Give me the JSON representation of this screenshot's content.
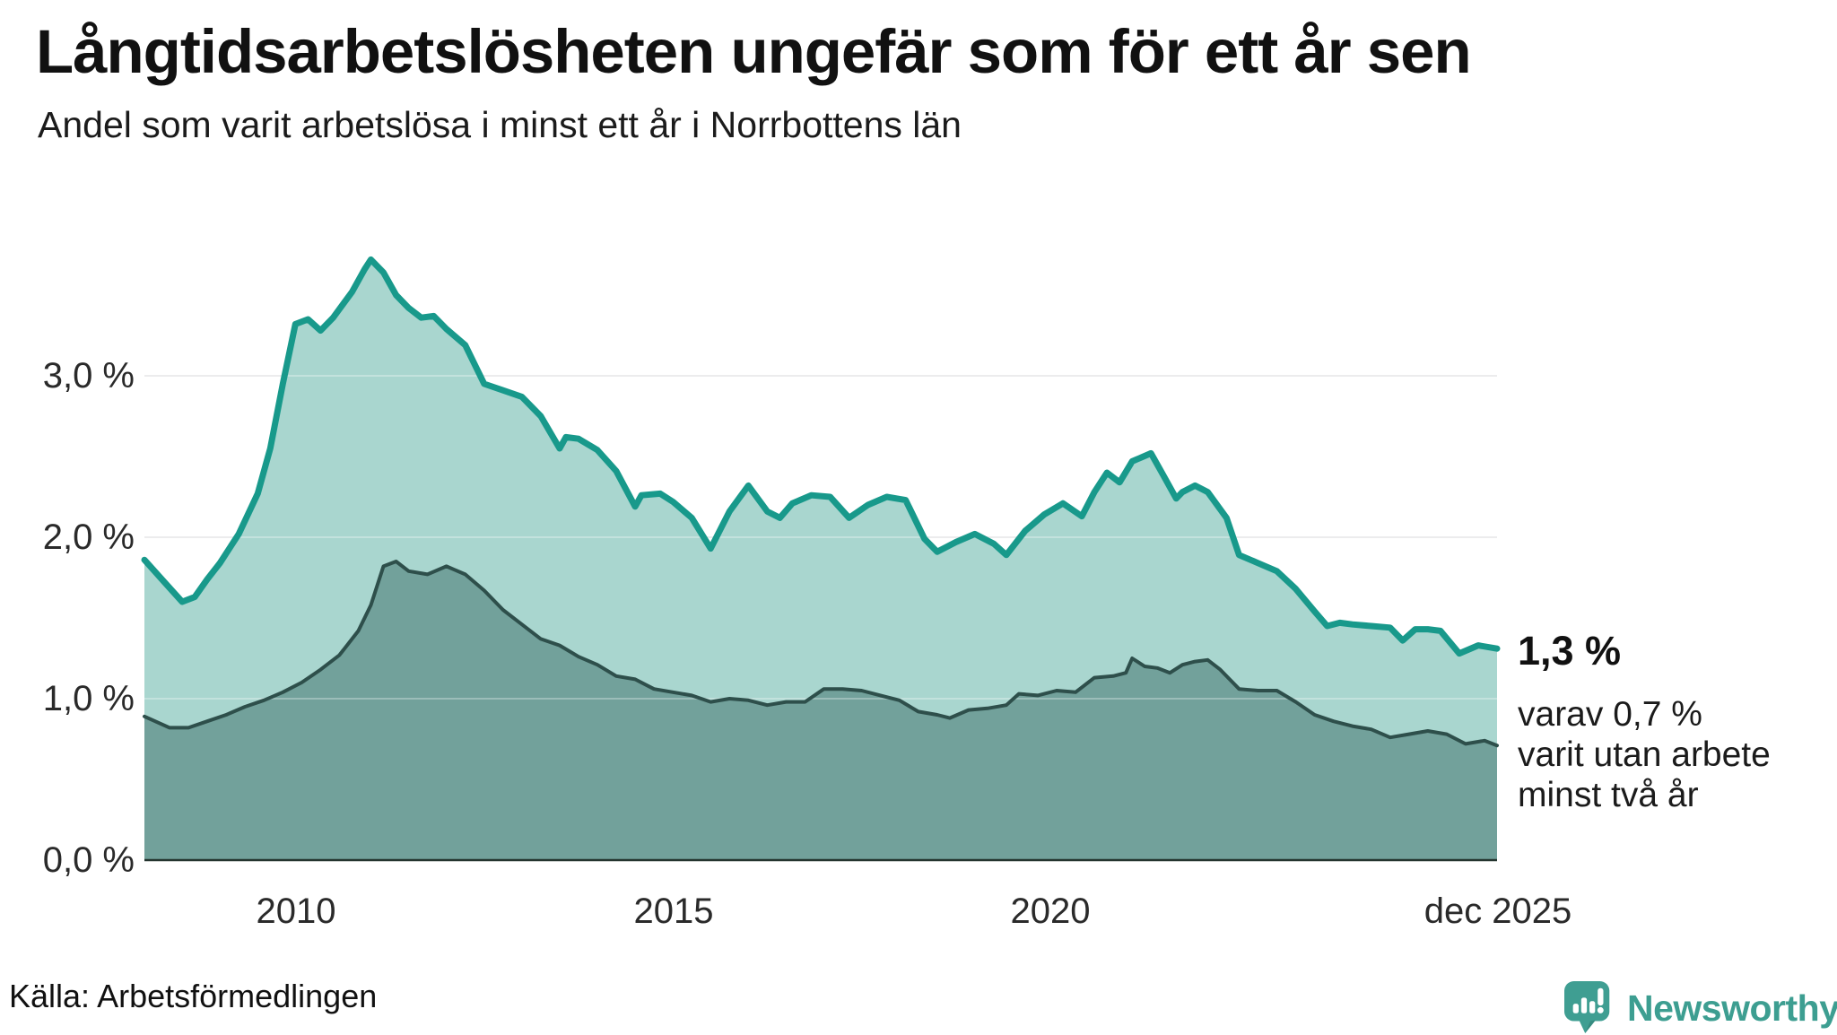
{
  "header": {
    "title": "Långtidsarbetslösheten ungefär som för ett år sen",
    "subtitle": "Andel som varit arbetslösa i minst ett år i Norrbottens län"
  },
  "chart_data": {
    "type": "area",
    "title": "Långtidsarbetslösheten ungefär som för ett år sen",
    "subtitle": "Andel som varit arbetslösa i minst ett år i Norrbottens län",
    "unit": "%",
    "x_range": [
      "2008-01",
      "2025-12"
    ],
    "ylim": [
      0,
      3.9
    ],
    "grid": true,
    "legend_position": "none",
    "y_ticks": [
      {
        "label": "3,0 %",
        "value": 3.0
      },
      {
        "label": "2,0 %",
        "value": 2.0
      },
      {
        "label": "1,0 %",
        "value": 1.0
      },
      {
        "label": "0,0 %",
        "value": 0.0
      }
    ],
    "x_ticks": [
      {
        "label": "2010",
        "date": "2010-01"
      },
      {
        "label": "2015",
        "date": "2015-01"
      },
      {
        "label": "2020",
        "date": "2020-01"
      },
      {
        "label": "dec 2025",
        "date": "2025-12"
      }
    ],
    "series": [
      {
        "name": "arbetslösa minst ett år",
        "line_color": "#18998b",
        "fill_color": "#a9d6cf",
        "line_width": 7,
        "points": [
          [
            "2008-01",
            1.86
          ],
          [
            "2008-04",
            1.73
          ],
          [
            "2008-07",
            1.6
          ],
          [
            "2008-09",
            1.63
          ],
          [
            "2008-11",
            1.74
          ],
          [
            "2009-01",
            1.84
          ],
          [
            "2009-04",
            2.02
          ],
          [
            "2009-07",
            2.27
          ],
          [
            "2009-09",
            2.55
          ],
          [
            "2009-11",
            2.95
          ],
          [
            "2010-01",
            3.32
          ],
          [
            "2010-03",
            3.35
          ],
          [
            "2010-05",
            3.28
          ],
          [
            "2010-07",
            3.36
          ],
          [
            "2010-10",
            3.52
          ],
          [
            "2010-12",
            3.66
          ],
          [
            "2011-01",
            3.72
          ],
          [
            "2011-03",
            3.64
          ],
          [
            "2011-05",
            3.5
          ],
          [
            "2011-07",
            3.42
          ],
          [
            "2011-09",
            3.36
          ],
          [
            "2011-11",
            3.37
          ],
          [
            "2012-01",
            3.29
          ],
          [
            "2012-04",
            3.19
          ],
          [
            "2012-07",
            2.95
          ],
          [
            "2012-10",
            2.91
          ],
          [
            "2013-01",
            2.87
          ],
          [
            "2013-04",
            2.75
          ],
          [
            "2013-07",
            2.55
          ],
          [
            "2013-08",
            2.62
          ],
          [
            "2013-10",
            2.61
          ],
          [
            "2014-01",
            2.54
          ],
          [
            "2014-04",
            2.41
          ],
          [
            "2014-07",
            2.19
          ],
          [
            "2014-08",
            2.26
          ],
          [
            "2014-11",
            2.27
          ],
          [
            "2015-01",
            2.22
          ],
          [
            "2015-04",
            2.12
          ],
          [
            "2015-07",
            1.93
          ],
          [
            "2015-10",
            2.16
          ],
          [
            "2016-01",
            2.32
          ],
          [
            "2016-04",
            2.16
          ],
          [
            "2016-06",
            2.12
          ],
          [
            "2016-08",
            2.21
          ],
          [
            "2016-11",
            2.26
          ],
          [
            "2017-02",
            2.25
          ],
          [
            "2017-05",
            2.12
          ],
          [
            "2017-08",
            2.2
          ],
          [
            "2017-11",
            2.25
          ],
          [
            "2018-02",
            2.23
          ],
          [
            "2018-05",
            1.99
          ],
          [
            "2018-07",
            1.91
          ],
          [
            "2018-10",
            1.97
          ],
          [
            "2019-01",
            2.02
          ],
          [
            "2019-04",
            1.96
          ],
          [
            "2019-06",
            1.89
          ],
          [
            "2019-09",
            2.04
          ],
          [
            "2019-12",
            2.14
          ],
          [
            "2020-03",
            2.21
          ],
          [
            "2020-06",
            2.13
          ],
          [
            "2020-08",
            2.28
          ],
          [
            "2020-10",
            2.4
          ],
          [
            "2020-12",
            2.34
          ],
          [
            "2021-02",
            2.47
          ],
          [
            "2021-05",
            2.52
          ],
          [
            "2021-07",
            2.38
          ],
          [
            "2021-09",
            2.24
          ],
          [
            "2021-10",
            2.28
          ],
          [
            "2021-12",
            2.32
          ],
          [
            "2022-02",
            2.28
          ],
          [
            "2022-05",
            2.12
          ],
          [
            "2022-07",
            1.89
          ],
          [
            "2022-10",
            1.84
          ],
          [
            "2023-01",
            1.79
          ],
          [
            "2023-04",
            1.68
          ],
          [
            "2023-07",
            1.54
          ],
          [
            "2023-09",
            1.45
          ],
          [
            "2023-11",
            1.47
          ],
          [
            "2024-01",
            1.46
          ],
          [
            "2024-04",
            1.45
          ],
          [
            "2024-07",
            1.44
          ],
          [
            "2024-09",
            1.36
          ],
          [
            "2024-11",
            1.43
          ],
          [
            "2025-01",
            1.43
          ],
          [
            "2025-03",
            1.42
          ],
          [
            "2025-06",
            1.28
          ],
          [
            "2025-09",
            1.33
          ],
          [
            "2025-12",
            1.31
          ]
        ]
      },
      {
        "name": "arbetslösa minst två år",
        "line_color": "#2e4f4b",
        "fill_color": "#72a19b",
        "line_width": 4,
        "points": [
          [
            "2008-01",
            0.89
          ],
          [
            "2008-05",
            0.82
          ],
          [
            "2008-08",
            0.82
          ],
          [
            "2008-11",
            0.86
          ],
          [
            "2009-02",
            0.9
          ],
          [
            "2009-05",
            0.95
          ],
          [
            "2009-08",
            0.99
          ],
          [
            "2009-11",
            1.04
          ],
          [
            "2010-02",
            1.1
          ],
          [
            "2010-05",
            1.18
          ],
          [
            "2010-08",
            1.27
          ],
          [
            "2010-11",
            1.42
          ],
          [
            "2011-01",
            1.58
          ],
          [
            "2011-03",
            1.82
          ],
          [
            "2011-05",
            1.85
          ],
          [
            "2011-07",
            1.79
          ],
          [
            "2011-10",
            1.77
          ],
          [
            "2012-01",
            1.82
          ],
          [
            "2012-04",
            1.77
          ],
          [
            "2012-07",
            1.67
          ],
          [
            "2012-10",
            1.55
          ],
          [
            "2013-01",
            1.46
          ],
          [
            "2013-04",
            1.37
          ],
          [
            "2013-07",
            1.33
          ],
          [
            "2013-10",
            1.26
          ],
          [
            "2014-01",
            1.21
          ],
          [
            "2014-04",
            1.14
          ],
          [
            "2014-07",
            1.12
          ],
          [
            "2014-10",
            1.06
          ],
          [
            "2015-01",
            1.04
          ],
          [
            "2015-04",
            1.02
          ],
          [
            "2015-07",
            0.98
          ],
          [
            "2015-10",
            1.0
          ],
          [
            "2016-01",
            0.99
          ],
          [
            "2016-04",
            0.96
          ],
          [
            "2016-07",
            0.98
          ],
          [
            "2016-10",
            0.98
          ],
          [
            "2017-01",
            1.06
          ],
          [
            "2017-04",
            1.06
          ],
          [
            "2017-07",
            1.05
          ],
          [
            "2017-10",
            1.02
          ],
          [
            "2018-01",
            0.99
          ],
          [
            "2018-04",
            0.92
          ],
          [
            "2018-07",
            0.9
          ],
          [
            "2018-09",
            0.88
          ],
          [
            "2018-12",
            0.93
          ],
          [
            "2019-03",
            0.94
          ],
          [
            "2019-06",
            0.96
          ],
          [
            "2019-08",
            1.03
          ],
          [
            "2019-11",
            1.02
          ],
          [
            "2020-02",
            1.05
          ],
          [
            "2020-05",
            1.04
          ],
          [
            "2020-08",
            1.13
          ],
          [
            "2020-11",
            1.14
          ],
          [
            "2021-01",
            1.16
          ],
          [
            "2021-02",
            1.25
          ],
          [
            "2021-04",
            1.2
          ],
          [
            "2021-06",
            1.19
          ],
          [
            "2021-08",
            1.16
          ],
          [
            "2021-10",
            1.21
          ],
          [
            "2021-12",
            1.23
          ],
          [
            "2022-02",
            1.24
          ],
          [
            "2022-04",
            1.18
          ],
          [
            "2022-07",
            1.06
          ],
          [
            "2022-10",
            1.05
          ],
          [
            "2023-01",
            1.05
          ],
          [
            "2023-04",
            0.98
          ],
          [
            "2023-07",
            0.9
          ],
          [
            "2023-10",
            0.86
          ],
          [
            "2024-01",
            0.83
          ],
          [
            "2024-04",
            0.81
          ],
          [
            "2024-07",
            0.76
          ],
          [
            "2024-10",
            0.78
          ],
          [
            "2025-01",
            0.8
          ],
          [
            "2025-04",
            0.78
          ],
          [
            "2025-07",
            0.72
          ],
          [
            "2025-10",
            0.74
          ],
          [
            "2025-12",
            0.71
          ]
        ]
      }
    ],
    "annotations": {
      "value_label": "1,3 %",
      "note_lines": [
        "varav 0,7 %",
        "varit utan arbete",
        "minst två år"
      ]
    }
  },
  "footer": {
    "source": "Källa: Arbetsförmedlingen",
    "brand": "Newsworthy"
  },
  "colors": {
    "background": "#ffffff",
    "line_1yr": "#18998b",
    "fill_1yr": "#a9d6cf",
    "line_2yr": "#2e4f4b",
    "fill_2yr": "#72a19b",
    "gridline": "#e4e4e6",
    "gridline_overlay": "rgba(255,255,255,0.30)",
    "axis": "#24342f",
    "brand_teal": "#3d9e91"
  }
}
